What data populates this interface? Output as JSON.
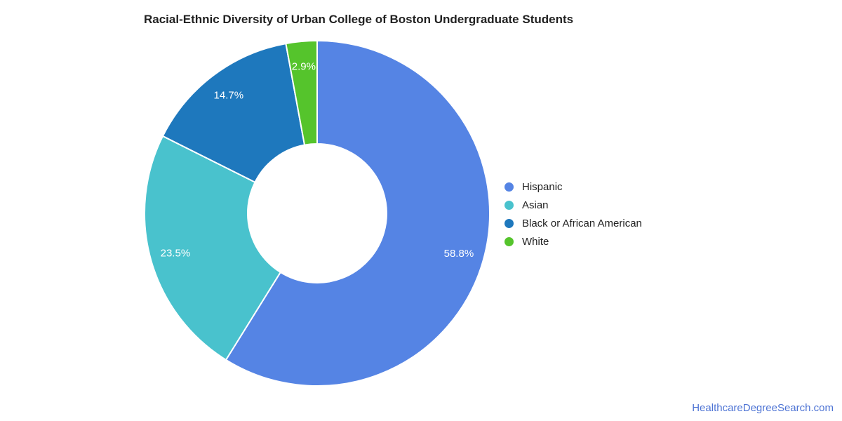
{
  "title": "Racial-Ethnic Diversity of Urban College of Boston Undergraduate Students",
  "chart_data": {
    "type": "pie",
    "subtype": "donut",
    "title": "Racial-Ethnic Diversity of Urban College of Boston Undergraduate Students",
    "categories": [
      "Hispanic",
      "Asian",
      "Black or African American",
      "White"
    ],
    "values": [
      58.8,
      23.5,
      14.7,
      2.9
    ],
    "slice_labels": [
      "58.8%",
      "23.5%",
      "14.7%",
      "2.9%"
    ],
    "colors": [
      "#5584e4",
      "#49c2cd",
      "#1e78bd",
      "#55c42c"
    ],
    "start_angle_deg": 0,
    "direction": "clockwise",
    "inner_radius_ratio": 0.4,
    "slice_label_color": "#ffffff",
    "slice_border_color": "#ffffff",
    "legend_position": "right",
    "background_color": "#ffffff"
  },
  "footer": {
    "link_label": "HealthcareDegreeSearch.com",
    "link_color": "#4d73d4"
  }
}
